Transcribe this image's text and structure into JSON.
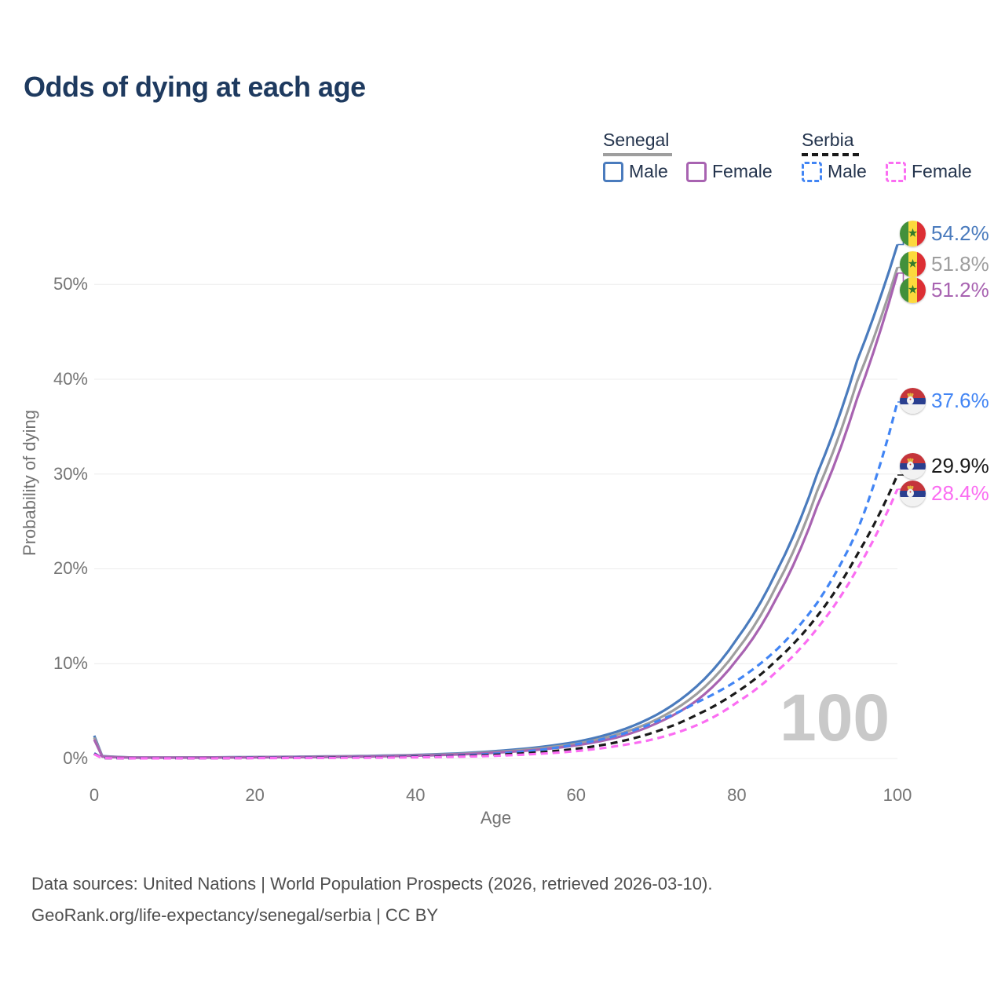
{
  "header": {
    "title": "Odds of dying at each age"
  },
  "legend": {
    "senegal": {
      "label": "Senegal",
      "male": "Male",
      "female": "Female"
    },
    "serbia": {
      "label": "Serbia",
      "male": "Male",
      "female": "Female"
    }
  },
  "axes": {
    "y_label": "Probability of dying",
    "x_label": "Age",
    "y_ticks": [
      "0%",
      "10%",
      "20%",
      "30%",
      "40%",
      "50%"
    ],
    "x_ticks": [
      "0",
      "20",
      "40",
      "60",
      "80",
      "100"
    ]
  },
  "watermark": "100",
  "footer": {
    "line1": "Data sources: United Nations | World Population Prospects (2026, retrieved 2026-03-10).",
    "line2": "GeoRank.org/life-expectancy/senegal/serbia | CC BY"
  },
  "chart_data": {
    "type": "line",
    "title": "Odds of dying at each age",
    "xlabel": "Age",
    "ylabel": "Probability of dying",
    "unit": "%",
    "xlim": [
      0,
      100
    ],
    "ylim_pct": [
      0,
      56
    ],
    "grid": "horizontal",
    "legend_position": "top-right",
    "x": [
      0,
      1,
      5,
      10,
      15,
      20,
      25,
      30,
      35,
      40,
      45,
      50,
      55,
      60,
      65,
      70,
      75,
      80,
      85,
      90,
      95,
      100
    ],
    "series": [
      {
        "key": "sen_m",
        "country": "Senegal",
        "sex": "Male",
        "style": "solid",
        "dashed": false,
        "color": "#4a7bbd",
        "end_label": "54.2%",
        "end_value_pct": 54.2,
        "flag": "senegal",
        "values_pct": [
          2.4,
          0.25,
          0.1,
          0.1,
          0.12,
          0.15,
          0.18,
          0.22,
          0.28,
          0.37,
          0.52,
          0.78,
          1.15,
          1.75,
          2.8,
          4.6,
          7.6,
          12.6,
          19.8,
          30.0,
          42.0,
          54.2
        ]
      },
      {
        "key": "sen_avg",
        "country": "Senegal",
        "sex": "Both sexes",
        "style": "solid",
        "dashed": false,
        "color": "#9e9e9e",
        "end_label": "51.8%",
        "end_value_pct": 51.8,
        "flag": "senegal",
        "values_pct": [
          2.2,
          0.22,
          0.09,
          0.09,
          0.11,
          0.13,
          0.16,
          0.2,
          0.25,
          0.33,
          0.46,
          0.69,
          1.02,
          1.55,
          2.5,
          4.1,
          6.8,
          11.4,
          18.3,
          28.2,
          39.8,
          51.8
        ]
      },
      {
        "key": "sen_f",
        "country": "Senegal",
        "sex": "Female",
        "style": "solid",
        "dashed": false,
        "color": "#a863b1",
        "end_label": "51.2%",
        "end_value_pct": 51.2,
        "flag": "senegal",
        "values_pct": [
          2.0,
          0.2,
          0.08,
          0.08,
          0.09,
          0.12,
          0.14,
          0.17,
          0.22,
          0.29,
          0.41,
          0.61,
          0.9,
          1.38,
          2.2,
          3.7,
          6.1,
          10.4,
          17.0,
          26.6,
          38.0,
          51.2
        ]
      },
      {
        "key": "srb_m",
        "country": "Serbia",
        "sex": "Male",
        "style": "dashed",
        "dashed": true,
        "color": "#4285f4",
        "end_label": "37.6%",
        "end_value_pct": 37.6,
        "flag": "serbia",
        "values_pct": [
          0.55,
          0.04,
          0.02,
          0.02,
          0.04,
          0.07,
          0.09,
          0.11,
          0.14,
          0.2,
          0.3,
          0.5,
          0.85,
          1.5,
          2.4,
          3.9,
          5.9,
          8.2,
          11.5,
          16.4,
          24.0,
          37.6
        ]
      },
      {
        "key": "srb_avg",
        "country": "Serbia",
        "sex": "Both sexes",
        "style": "dashed",
        "dashed": true,
        "color": "#1a1a1a",
        "end_label": "29.9%",
        "end_value_pct": 29.9,
        "flag": "serbia",
        "values_pct": [
          0.5,
          0.035,
          0.015,
          0.015,
          0.03,
          0.05,
          0.07,
          0.09,
          0.11,
          0.16,
          0.24,
          0.38,
          0.62,
          1.02,
          1.7,
          2.85,
          4.6,
          7.0,
          10.4,
          15.0,
          21.5,
          29.9
        ]
      },
      {
        "key": "srb_f",
        "country": "Serbia",
        "sex": "Female",
        "style": "dashed",
        "dashed": true,
        "color": "#fb6df2",
        "end_label": "28.4%",
        "end_value_pct": 28.4,
        "flag": "serbia",
        "values_pct": [
          0.45,
          0.03,
          0.012,
          0.012,
          0.02,
          0.035,
          0.05,
          0.06,
          0.08,
          0.12,
          0.18,
          0.28,
          0.47,
          0.78,
          1.3,
          2.1,
          3.5,
          5.9,
          9.2,
          13.7,
          20.0,
          28.4
        ]
      }
    ]
  }
}
